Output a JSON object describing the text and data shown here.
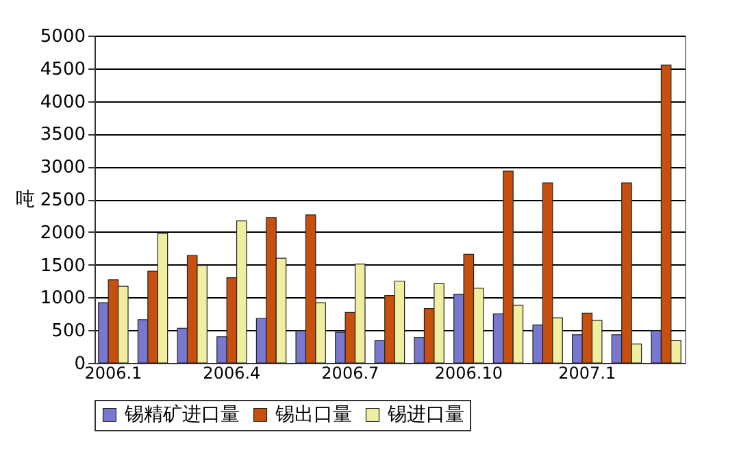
{
  "chart_data": {
    "type": "bar",
    "ylabel": "吨",
    "categories": [
      "2006.1",
      null,
      null,
      "2006.4",
      null,
      null,
      "2006.7",
      null,
      null,
      "2006.10",
      null,
      null,
      "2007.1",
      null,
      null
    ],
    "series": [
      {
        "name": "锡精矿进口量",
        "color": "#7878d0",
        "values": [
          920,
          660,
          530,
          400,
          680,
          490,
          470,
          340,
          390,
          1050,
          750,
          580,
          430,
          430,
          490
        ]
      },
      {
        "name": "锡出口量",
        "color": "#c8500f",
        "values": [
          1270,
          1400,
          1640,
          1300,
          2220,
          2260,
          770,
          1030,
          830,
          1660,
          2930,
          2750,
          760,
          2750,
          4550
        ]
      },
      {
        "name": "锡进口量",
        "color": "#f0eea0",
        "values": [
          1170,
          1980,
          1490,
          2170,
          1600,
          920,
          1510,
          1250,
          1210,
          1140,
          880,
          690,
          650,
          290,
          340
        ]
      }
    ],
    "ylim": [
      0,
      5000
    ],
    "yticks": [
      0,
      500,
      1000,
      1500,
      2000,
      2500,
      3000,
      3500,
      4000,
      4500,
      5000
    ],
    "grid": "y",
    "legend": "bottom"
  }
}
